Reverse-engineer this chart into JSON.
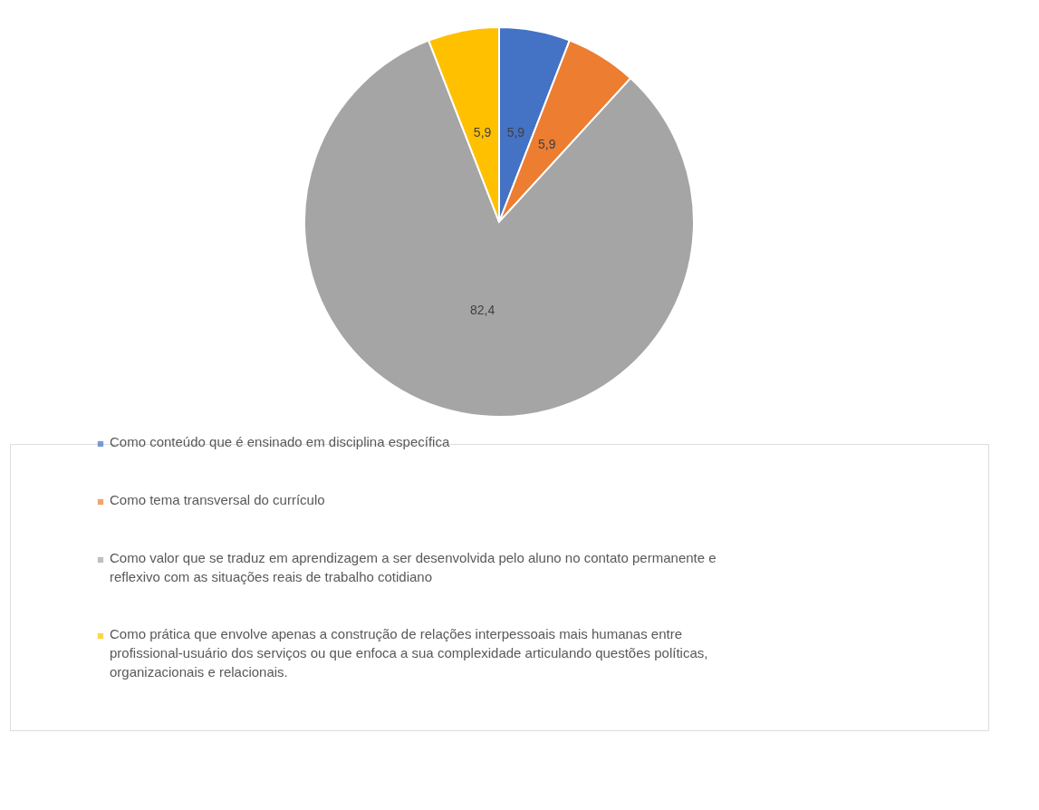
{
  "chart_data": {
    "type": "pie",
    "categories": [
      "Como conteúdo que é ensinado em disciplina específica",
      "Como tema transversal do currículo",
      "Como valor que se traduz em aprendizagem a ser desenvolvida pelo aluno no contato permanente e reflexivo com as situações reais de trabalho cotidiano",
      "Como prática que envolve apenas a construção de relações interpessoais mais humanas entre profissional-usuário dos serviços ou que enfoca a sua complexidade articulando questões políticas, organizacionais e relacionais."
    ],
    "values": [
      5.9,
      5.9,
      82.4,
      5.9
    ],
    "value_labels": [
      "5,9",
      "5,9",
      "82,4",
      "5,9"
    ],
    "colors": [
      "#4472c4",
      "#ed7d31",
      "#a5a5a5",
      "#ffc000"
    ],
    "legend": "bottom"
  }
}
